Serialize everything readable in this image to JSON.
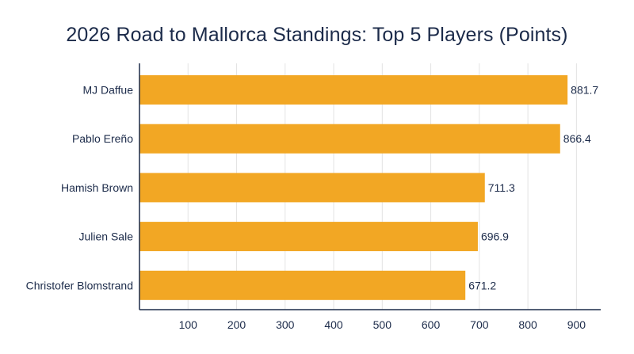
{
  "chart_data": {
    "type": "bar",
    "orientation": "horizontal",
    "title": "2026 Road to Mallorca Standings: Top 5 Players (Points)",
    "xlabel": "",
    "ylabel": "",
    "categories": [
      "MJ Daffue",
      "Pablo Ereño",
      "Hamish Brown",
      "Julien Sale",
      "Christofer Blomstrand"
    ],
    "values": [
      881.7,
      866.4,
      711.3,
      696.9,
      671.2
    ],
    "value_labels": [
      "881.7",
      "866.4",
      "711.3",
      "696.9",
      "671.2"
    ],
    "xlim": [
      0,
      950
    ],
    "xticks": [
      100,
      200,
      300,
      400,
      500,
      600,
      700,
      800,
      900
    ],
    "grid": true,
    "legend": "none",
    "bar_color": "#f2a724",
    "text_color": "#1c2b4a"
  }
}
